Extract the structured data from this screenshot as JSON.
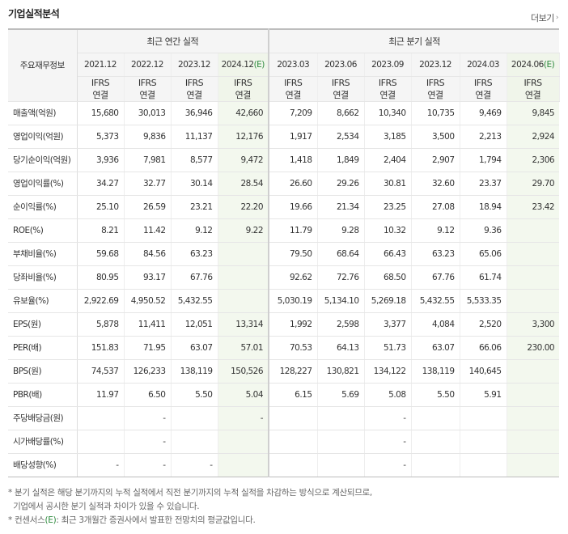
{
  "title": "기업실적분석",
  "more_label": "더보기",
  "header": {
    "row_label": "주요재무정보",
    "annual_group": "최근 연간 실적",
    "quarter_group": "최근 분기 실적",
    "annual_periods": [
      "2021.12",
      "2022.12",
      "2023.12",
      "2024.12"
    ],
    "annual_estimate_suffix": "(E)",
    "quarter_periods": [
      "2023.03",
      "2023.06",
      "2023.09",
      "2023.12",
      "2024.03",
      "2024.06"
    ],
    "quarter_estimate_suffix": "(E)",
    "ifrs_top": "IFRS",
    "ifrs_bottom": "연결"
  },
  "rows": [
    {
      "label": "매출액(억원)",
      "annual": [
        "15,680",
        "30,013",
        "36,946",
        "42,660"
      ],
      "quarter": [
        "7,209",
        "8,662",
        "10,340",
        "10,735",
        "9,469",
        "9,845"
      ]
    },
    {
      "label": "영업이익(억원)",
      "annual": [
        "5,373",
        "9,836",
        "11,137",
        "12,176"
      ],
      "quarter": [
        "1,917",
        "2,534",
        "3,185",
        "3,500",
        "2,213",
        "2,924"
      ]
    },
    {
      "label": "당기순이익(억원)",
      "annual": [
        "3,936",
        "7,981",
        "8,577",
        "9,472"
      ],
      "quarter": [
        "1,418",
        "1,849",
        "2,404",
        "2,907",
        "1,794",
        "2,306"
      ]
    },
    {
      "label": "영업이익률(%)",
      "annual": [
        "34.27",
        "32.77",
        "30.14",
        "28.54"
      ],
      "quarter": [
        "26.60",
        "29.26",
        "30.81",
        "32.60",
        "23.37",
        "29.70"
      ]
    },
    {
      "label": "순이익률(%)",
      "annual": [
        "25.10",
        "26.59",
        "23.21",
        "22.20"
      ],
      "quarter": [
        "19.66",
        "21.34",
        "23.25",
        "27.08",
        "18.94",
        "23.42"
      ]
    },
    {
      "label": "ROE(%)",
      "annual": [
        "8.21",
        "11.42",
        "9.12",
        "9.22"
      ],
      "quarter": [
        "11.79",
        "9.28",
        "10.32",
        "9.12",
        "9.36",
        ""
      ]
    },
    {
      "label": "부채비율(%)",
      "annual": [
        "59.68",
        "84.56",
        "63.23",
        ""
      ],
      "quarter": [
        "79.50",
        "68.64",
        "66.43",
        "63.23",
        "65.06",
        ""
      ]
    },
    {
      "label": "당좌비율(%)",
      "annual": [
        "80.95",
        "93.17",
        "67.76",
        ""
      ],
      "quarter": [
        "92.62",
        "72.76",
        "68.50",
        "67.76",
        "61.74",
        ""
      ]
    },
    {
      "label": "유보율(%)",
      "annual": [
        "2,922.69",
        "4,950.52",
        "5,432.55",
        ""
      ],
      "quarter": [
        "5,030.19",
        "5,134.10",
        "5,269.18",
        "5,432.55",
        "5,533.35",
        ""
      ]
    },
    {
      "label": "EPS(원)",
      "annual": [
        "5,878",
        "11,411",
        "12,051",
        "13,314"
      ],
      "quarter": [
        "1,992",
        "2,598",
        "3,377",
        "4,084",
        "2,520",
        "3,300"
      ]
    },
    {
      "label": "PER(배)",
      "annual": [
        "151.83",
        "71.95",
        "63.07",
        "57.01"
      ],
      "quarter": [
        "70.53",
        "64.13",
        "51.73",
        "63.07",
        "66.06",
        "230.00"
      ]
    },
    {
      "label": "BPS(원)",
      "annual": [
        "74,537",
        "126,233",
        "138,119",
        "150,526"
      ],
      "quarter": [
        "128,227",
        "130,821",
        "134,122",
        "138,119",
        "140,645",
        ""
      ]
    },
    {
      "label": "PBR(배)",
      "annual": [
        "11.97",
        "6.50",
        "5.50",
        "5.04"
      ],
      "quarter": [
        "6.15",
        "5.69",
        "5.08",
        "5.50",
        "5.91",
        ""
      ]
    },
    {
      "label": "주당배당금(원)",
      "annual": [
        "",
        "-",
        "",
        "-"
      ],
      "quarter": [
        "",
        "",
        "-",
        "",
        "",
        ""
      ]
    },
    {
      "label": "시가배당률(%)",
      "annual": [
        "",
        "-",
        "",
        ""
      ],
      "quarter": [
        "",
        "",
        "-",
        "",
        "",
        ""
      ]
    },
    {
      "label": "배당성향(%)",
      "annual": [
        "-",
        "-",
        "-",
        ""
      ],
      "quarter": [
        "",
        "",
        "-",
        "",
        "",
        ""
      ]
    }
  ],
  "group_starts": [
    0,
    3,
    9,
    13
  ],
  "notes": {
    "line1": "* 분기 실적은 해당 분기까지의 누적 실적에서 직전 분기까지의 누적 실적을 차감하는 방식으로 계산되므로,",
    "line2": "  기업에서 공시한 분기 실적과 차이가 있을 수 있습니다.",
    "line3_prefix": "* 컨센서스",
    "line3_mark": "(E)",
    "line3_suffix": ": 최근 3개월간 증권사에서 발표한 전망치의 평균값입니다."
  },
  "colors": {
    "ifrs": "#e05a00",
    "estimate_mark": "#2e8b3e",
    "estimate_bg": "#f3f8ee"
  },
  "icons": {
    "more": "chevron-right-icon"
  }
}
